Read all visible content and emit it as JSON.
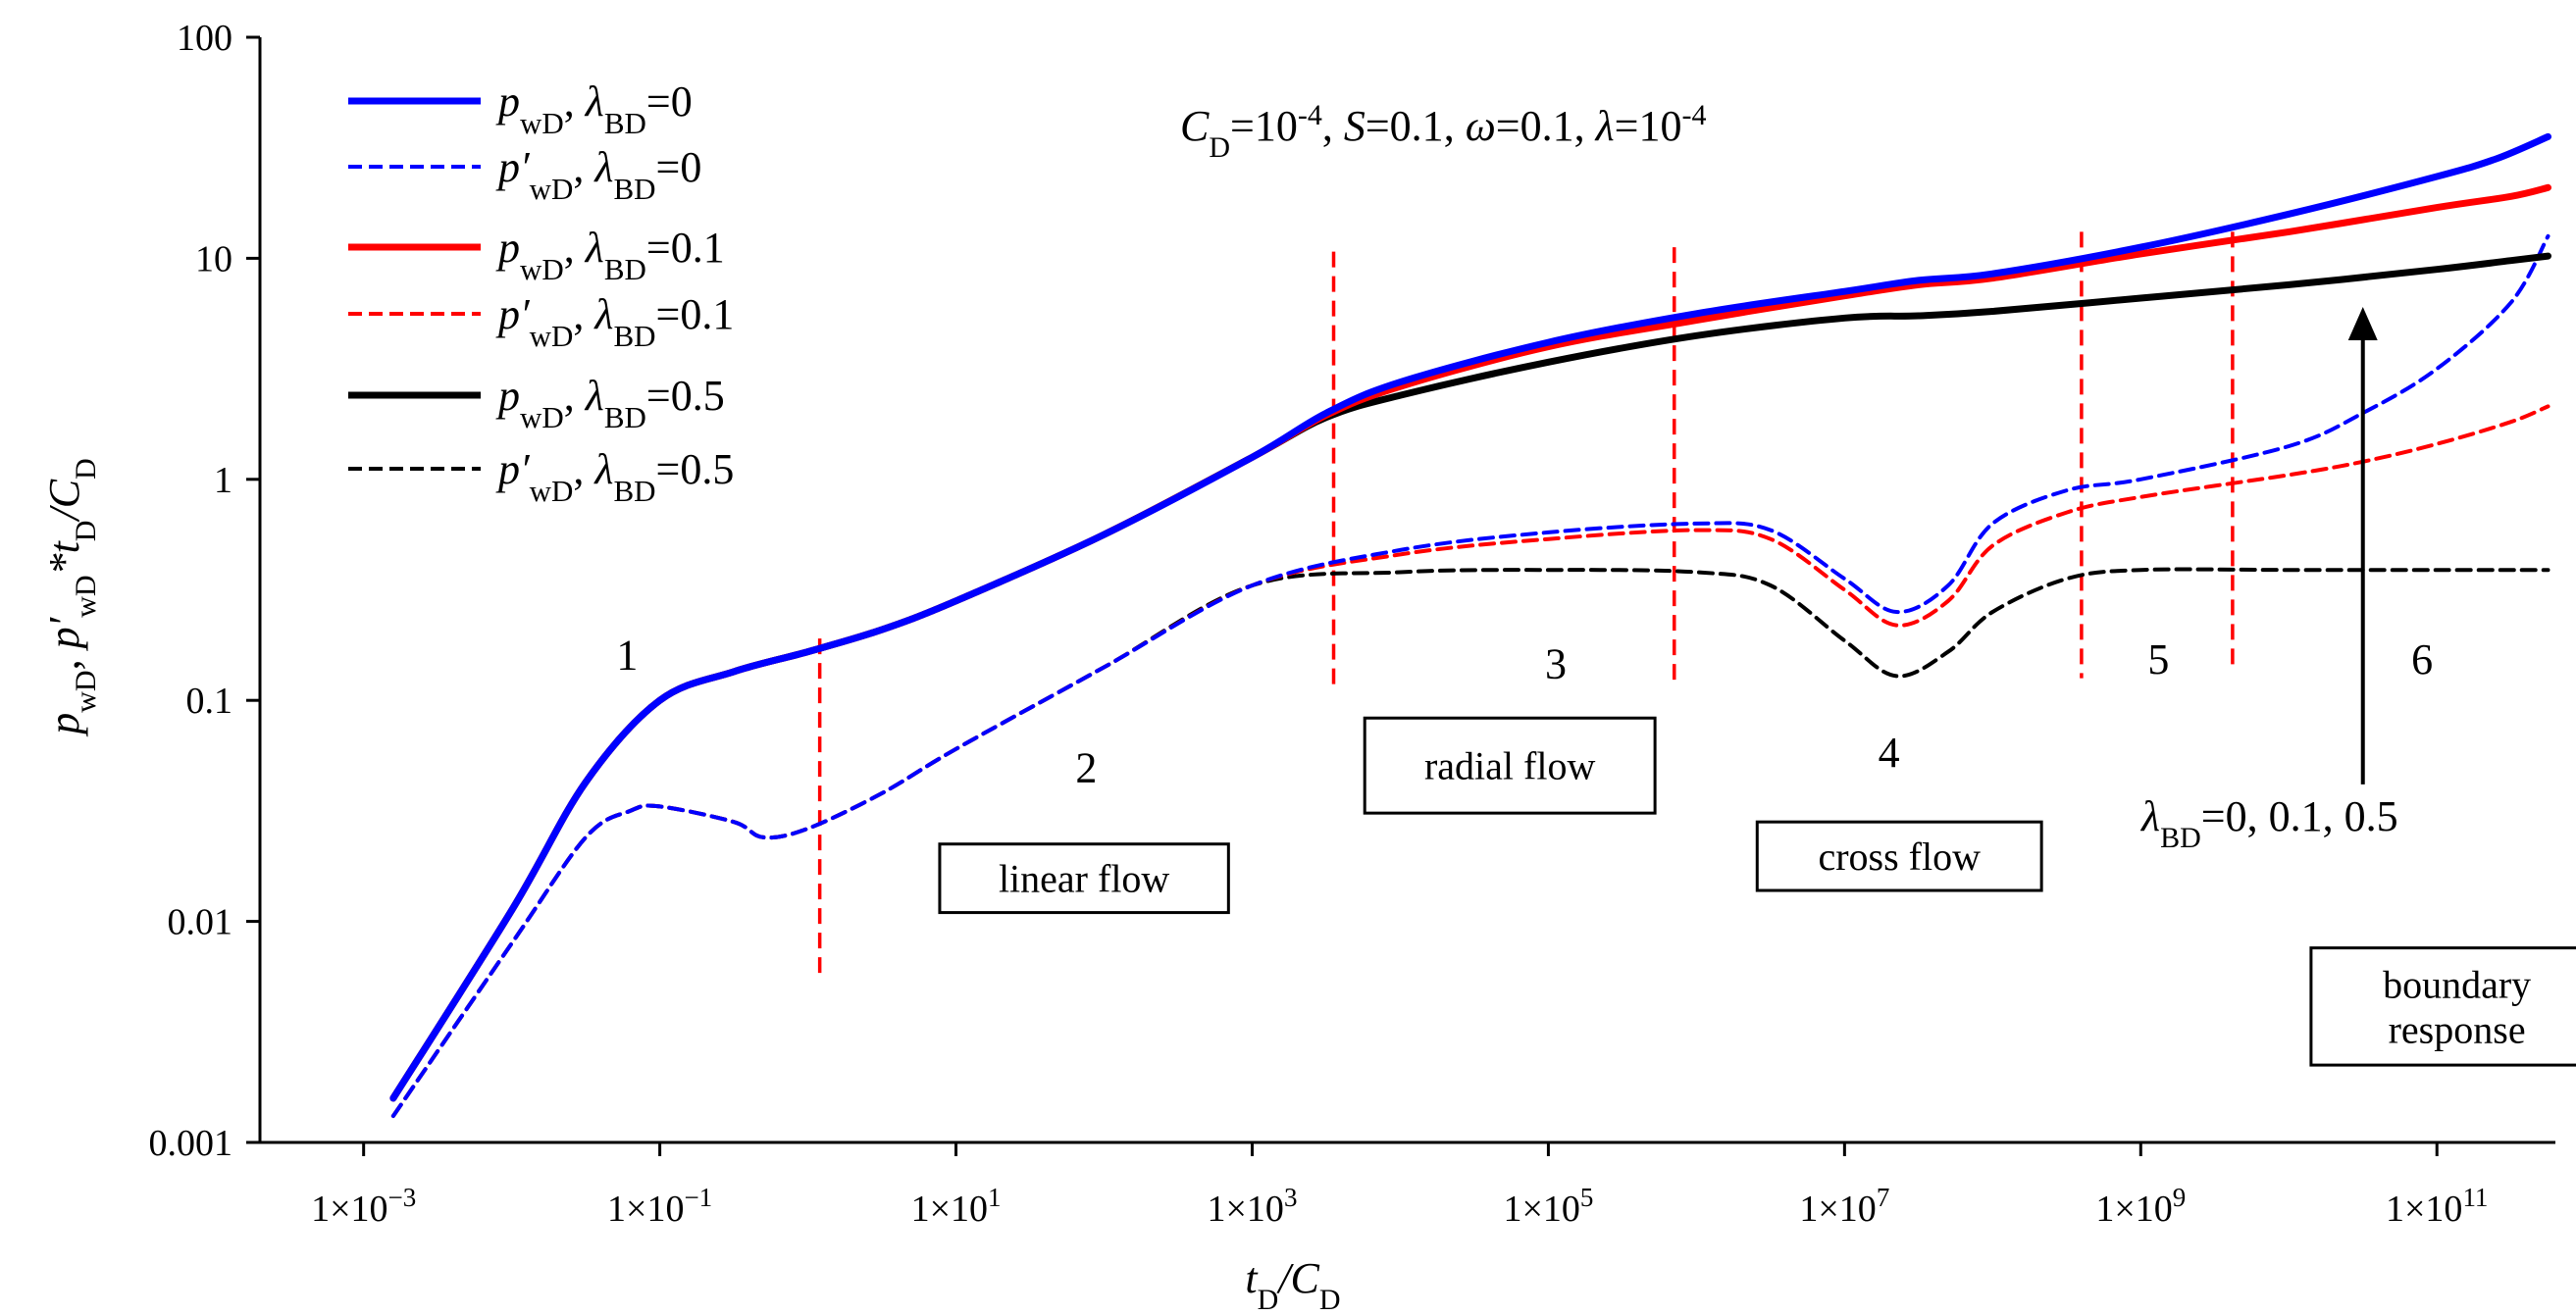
{
  "chart_data": {
    "type": "line",
    "scale": {
      "x": "log",
      "y": "log"
    },
    "xlim": [
      -3.7,
      11.8
    ],
    "ylim": [
      -3,
      2
    ],
    "xlabel": {
      "main": "t",
      "sub": "D",
      "mid": "/C",
      "sub2": "D"
    },
    "ylabel": {
      "p": "p",
      "p_sub": "wD",
      "sep": ", ",
      "dp": "p′",
      "dp_sub": "wD",
      "star": "*t",
      "t_sub": "D",
      "div": "/C",
      "c_sub": "D"
    },
    "x_ticks": [
      {
        "exp": -3,
        "base": "1×10",
        "sup": "−3"
      },
      {
        "exp": -1,
        "base": "1×10",
        "sup": "−1"
      },
      {
        "exp": 1,
        "base": "1×10",
        "sup": "1"
      },
      {
        "exp": 3,
        "base": "1×10",
        "sup": "3"
      },
      {
        "exp": 5,
        "base": "1×10",
        "sup": "5"
      },
      {
        "exp": 7,
        "base": "1×10",
        "sup": "7"
      },
      {
        "exp": 9,
        "base": "1×10",
        "sup": "9"
      },
      {
        "exp": 11,
        "base": "1×10",
        "sup": "11"
      }
    ],
    "y_ticks": [
      {
        "exp": -3,
        "label": "0.001"
      },
      {
        "exp": -2,
        "label": "0.01"
      },
      {
        "exp": -1,
        "label": "0.1"
      },
      {
        "exp": 0,
        "label": "1"
      },
      {
        "exp": 1,
        "label": "10"
      },
      {
        "exp": 2,
        "label": "100"
      }
    ],
    "parameters": {
      "C": "C",
      "C_sub": "D",
      "C_val": "=10",
      "C_exp": "-4",
      "S": "S",
      "S_val": "=0.1",
      "omega": "ω",
      "omega_val": "=0.1",
      "lambda": "λ",
      "lambda_val": "=10",
      "lambda_exp": "-4",
      "sep": ", "
    },
    "series": [
      {
        "name": "pwD, λBD=0",
        "label_main": "p",
        "label_prime": "",
        "label_sub": "wD",
        "label_lam": "λ",
        "label_lam_sub": "BD",
        "label_val": "=0",
        "color": "#0000ff",
        "dashed": false,
        "points": [
          [
            -2.8,
            -2.8
          ],
          [
            -2,
            -1.95
          ],
          [
            -1.5,
            -1.37
          ],
          [
            -1,
            -1.0
          ],
          [
            -0.5,
            -0.87
          ],
          [
            0,
            -0.78
          ],
          [
            0.5,
            -0.68
          ],
          [
            1,
            -0.55
          ],
          [
            2,
            -0.25
          ],
          [
            3,
            0.1
          ],
          [
            3.5,
            0.3
          ],
          [
            4,
            0.44
          ],
          [
            5,
            0.62
          ],
          [
            6,
            0.75
          ],
          [
            7,
            0.85
          ],
          [
            7.5,
            0.9
          ],
          [
            8,
            0.93
          ],
          [
            9,
            1.05
          ],
          [
            10,
            1.2
          ],
          [
            11,
            1.37
          ],
          [
            11.4,
            1.45
          ],
          [
            11.75,
            1.55
          ]
        ]
      },
      {
        "name": "p'wD, λBD=0",
        "label_main": "p",
        "label_prime": "′",
        "label_sub": "wD",
        "label_lam": "λ",
        "label_lam_sub": "BD",
        "label_val": "=0",
        "color": "#0000ff",
        "dashed": true,
        "points": [
          [
            -2.8,
            -2.88
          ],
          [
            -2,
            -2.1
          ],
          [
            -1.5,
            -1.62
          ],
          [
            -1.2,
            -1.5
          ],
          [
            -1,
            -1.48
          ],
          [
            -0.5,
            -1.55
          ],
          [
            -0.3,
            -1.62
          ],
          [
            0,
            -1.58
          ],
          [
            0.5,
            -1.42
          ],
          [
            1,
            -1.22
          ],
          [
            2,
            -0.85
          ],
          [
            3,
            -0.48
          ],
          [
            4,
            -0.32
          ],
          [
            5,
            -0.24
          ],
          [
            6,
            -0.2
          ],
          [
            6.5,
            -0.23
          ],
          [
            7,
            -0.45
          ],
          [
            7.35,
            -0.6
          ],
          [
            7.7,
            -0.48
          ],
          [
            8,
            -0.2
          ],
          [
            8.5,
            -0.05
          ],
          [
            9,
            0
          ],
          [
            10,
            0.15
          ],
          [
            10.5,
            0.3
          ],
          [
            11,
            0.5
          ],
          [
            11.5,
            0.8
          ],
          [
            11.75,
            1.1
          ]
        ]
      },
      {
        "name": "pwD, λBD=0.1",
        "label_main": "p",
        "label_prime": "",
        "label_sub": "wD",
        "label_lam": "λ",
        "label_lam_sub": "BD",
        "label_val": "=0.1",
        "color": "#ff0000",
        "dashed": false,
        "points": [
          [
            -2.8,
            -2.8
          ],
          [
            -2,
            -1.95
          ],
          [
            -1.5,
            -1.37
          ],
          [
            -1,
            -1.0
          ],
          [
            -0.5,
            -0.87
          ],
          [
            0,
            -0.78
          ],
          [
            0.5,
            -0.68
          ],
          [
            1,
            -0.55
          ],
          [
            2,
            -0.25
          ],
          [
            3,
            0.1
          ],
          [
            3.5,
            0.29
          ],
          [
            4,
            0.42
          ],
          [
            5,
            0.6
          ],
          [
            6,
            0.72
          ],
          [
            7,
            0.83
          ],
          [
            7.5,
            0.88
          ],
          [
            8,
            0.91
          ],
          [
            9,
            1.02
          ],
          [
            10,
            1.12
          ],
          [
            11,
            1.23
          ],
          [
            11.5,
            1.28
          ],
          [
            11.75,
            1.32
          ]
        ]
      },
      {
        "name": "p'wD, λBD=0.1",
        "label_main": "p",
        "label_prime": "′",
        "label_sub": "wD",
        "label_lam": "λ",
        "label_lam_sub": "BD",
        "label_val": "=0.1",
        "color": "#ff0000",
        "dashed": true,
        "points": [
          [
            -2.8,
            -2.88
          ],
          [
            -2,
            -2.1
          ],
          [
            -1.5,
            -1.62
          ],
          [
            -1.2,
            -1.5
          ],
          [
            -1,
            -1.48
          ],
          [
            -0.5,
            -1.55
          ],
          [
            -0.3,
            -1.62
          ],
          [
            0,
            -1.58
          ],
          [
            0.5,
            -1.42
          ],
          [
            1,
            -1.22
          ],
          [
            2,
            -0.85
          ],
          [
            3,
            -0.48
          ],
          [
            4,
            -0.34
          ],
          [
            5,
            -0.27
          ],
          [
            6,
            -0.23
          ],
          [
            6.5,
            -0.27
          ],
          [
            7,
            -0.5
          ],
          [
            7.35,
            -0.66
          ],
          [
            7.7,
            -0.55
          ],
          [
            8,
            -0.3
          ],
          [
            8.5,
            -0.15
          ],
          [
            9,
            -0.08
          ],
          [
            10,
            0.02
          ],
          [
            10.5,
            0.08
          ],
          [
            11,
            0.16
          ],
          [
            11.5,
            0.26
          ],
          [
            11.75,
            0.33
          ]
        ]
      },
      {
        "name": "pwD, λBD=0.5",
        "label_main": "p",
        "label_prime": "",
        "label_sub": "wD",
        "label_lam": "λ",
        "label_lam_sub": "BD",
        "label_val": "=0.5",
        "color": "#000000",
        "dashed": false,
        "points": [
          [
            -2.8,
            -2.8
          ],
          [
            -2,
            -1.95
          ],
          [
            -1.5,
            -1.37
          ],
          [
            -1,
            -1.0
          ],
          [
            -0.5,
            -0.87
          ],
          [
            0,
            -0.78
          ],
          [
            0.5,
            -0.68
          ],
          [
            1,
            -0.55
          ],
          [
            2,
            -0.25
          ],
          [
            3,
            0.1
          ],
          [
            3.5,
            0.28
          ],
          [
            4,
            0.38
          ],
          [
            5,
            0.53
          ],
          [
            6,
            0.65
          ],
          [
            7,
            0.73
          ],
          [
            7.5,
            0.74
          ],
          [
            8,
            0.76
          ],
          [
            9,
            0.82
          ],
          [
            10,
            0.88
          ],
          [
            11,
            0.95
          ],
          [
            11.5,
            0.99
          ],
          [
            11.75,
            1.01
          ]
        ]
      },
      {
        "name": "p'wD, λBD=0.5",
        "label_main": "p",
        "label_prime": "′",
        "label_sub": "wD",
        "label_lam": "λ",
        "label_lam_sub": "BD",
        "label_val": "=0.5",
        "color": "#000000",
        "dashed": true,
        "points": [
          [
            -2.8,
            -2.88
          ],
          [
            -2,
            -2.1
          ],
          [
            -1.5,
            -1.62
          ],
          [
            -1.2,
            -1.5
          ],
          [
            -1,
            -1.48
          ],
          [
            -0.5,
            -1.55
          ],
          [
            -0.3,
            -1.62
          ],
          [
            0,
            -1.58
          ],
          [
            0.5,
            -1.42
          ],
          [
            1,
            -1.22
          ],
          [
            2,
            -0.85
          ],
          [
            3,
            -0.48
          ],
          [
            4,
            -0.42
          ],
          [
            5,
            -0.41
          ],
          [
            6,
            -0.42
          ],
          [
            6.5,
            -0.48
          ],
          [
            7,
            -0.73
          ],
          [
            7.35,
            -0.89
          ],
          [
            7.7,
            -0.78
          ],
          [
            8,
            -0.6
          ],
          [
            8.5,
            -0.45
          ],
          [
            9,
            -0.41
          ],
          [
            10,
            -0.41
          ],
          [
            11,
            -0.41
          ],
          [
            11.75,
            -0.41
          ]
        ]
      }
    ],
    "vlines": [
      {
        "x": 0.08,
        "y0": -2.26,
        "y1": -0.72
      },
      {
        "x": 3.55,
        "y0": -0.96,
        "y1": 1.03
      },
      {
        "x": 5.85,
        "y0": -0.93,
        "y1": 1.05
      },
      {
        "x": 8.6,
        "y0": -0.9,
        "y1": 1.12
      },
      {
        "x": 9.62,
        "y0": -0.86,
        "y1": 1.12
      }
    ],
    "regions": [
      {
        "label": "1",
        "x": -1.22,
        "y": -0.86
      },
      {
        "label": "2",
        "x": 1.88,
        "y": -1.37
      },
      {
        "label": "3",
        "x": 5.05,
        "y": -0.9
      },
      {
        "label": "4",
        "x": 7.3,
        "y": -1.3
      },
      {
        "label": "5",
        "x": 9.12,
        "y": -0.88
      },
      {
        "label": "6",
        "x": 10.9,
        "y": -0.88
      }
    ],
    "boxes": [
      {
        "lines": [
          "linear flow"
        ],
        "x0": 0.89,
        "x1": 2.84,
        "y0": -1.65,
        "y1": -1.96
      },
      {
        "lines": [
          "radial flow"
        ],
        "x0": 3.76,
        "x1": 5.72,
        "y0": -1.08,
        "y1": -1.51
      },
      {
        "lines": [
          "cross flow"
        ],
        "x0": 6.41,
        "x1": 8.33,
        "y0": -1.55,
        "y1": -1.86
      },
      {
        "lines": [
          "boundary",
          "response"
        ],
        "x0": 10.15,
        "x1": 12.12,
        "y0": -2.12,
        "y1": -2.65
      }
    ],
    "arrow": {
      "x": 10.5,
      "y_from": -1.38,
      "y_to": 0.78
    },
    "arrow_label": {
      "lam": "λ",
      "sub": "BD",
      "val": "=0, 0.1, 0.5"
    }
  }
}
